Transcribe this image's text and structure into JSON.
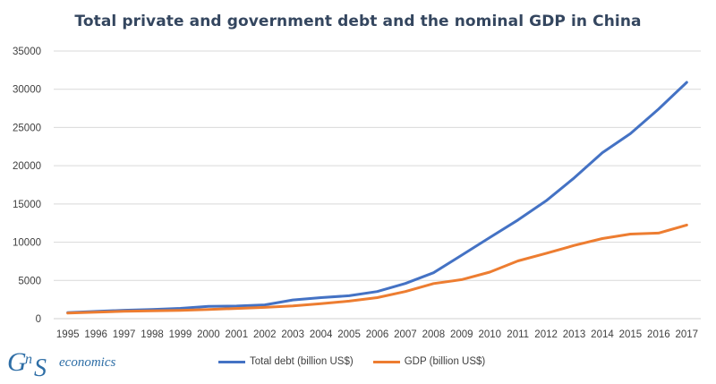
{
  "colors": {
    "debt": "#4472c4",
    "gdp": "#ed7d31",
    "grid": "#d9d9d9",
    "logo": "#2e6ea6"
  },
  "chart_data": {
    "type": "line",
    "title": "Total private and government debt and the nominal GDP in China",
    "x": [
      "1995",
      "1996",
      "1997",
      "1998",
      "1999",
      "2000",
      "2001",
      "2002",
      "2003",
      "2004",
      "2005",
      "2006",
      "2007",
      "2008",
      "2009",
      "2010",
      "2011",
      "2012",
      "2013",
      "2014",
      "2015",
      "2016",
      "2017"
    ],
    "yticks": [
      "0",
      "5000",
      "10000",
      "15000",
      "20000",
      "25000",
      "30000",
      "35000"
    ],
    "ylim": [
      0,
      35000
    ],
    "grid": true,
    "legend": "bottom",
    "series": [
      {
        "name": "Total debt (billion US$)",
        "color": "#4472c4",
        "values": [
          800,
          950,
          1100,
          1200,
          1350,
          1600,
          1650,
          1800,
          2450,
          2750,
          3000,
          3550,
          4600,
          6000,
          8300,
          10600,
          12900,
          15400,
          18400,
          21700,
          24200,
          27400,
          30900
        ]
      },
      {
        "name": "GDP (billion US$)",
        "color": "#ed7d31",
        "values": [
          730,
          860,
          960,
          1030,
          1090,
          1210,
          1340,
          1470,
          1660,
          1960,
          2290,
          2750,
          3550,
          4590,
          5100,
          6090,
          7550,
          8530,
          9570,
          10480,
          11060,
          11190,
          12240
        ]
      }
    ]
  },
  "logo": {
    "letters": "GnS",
    "word": "economics"
  }
}
